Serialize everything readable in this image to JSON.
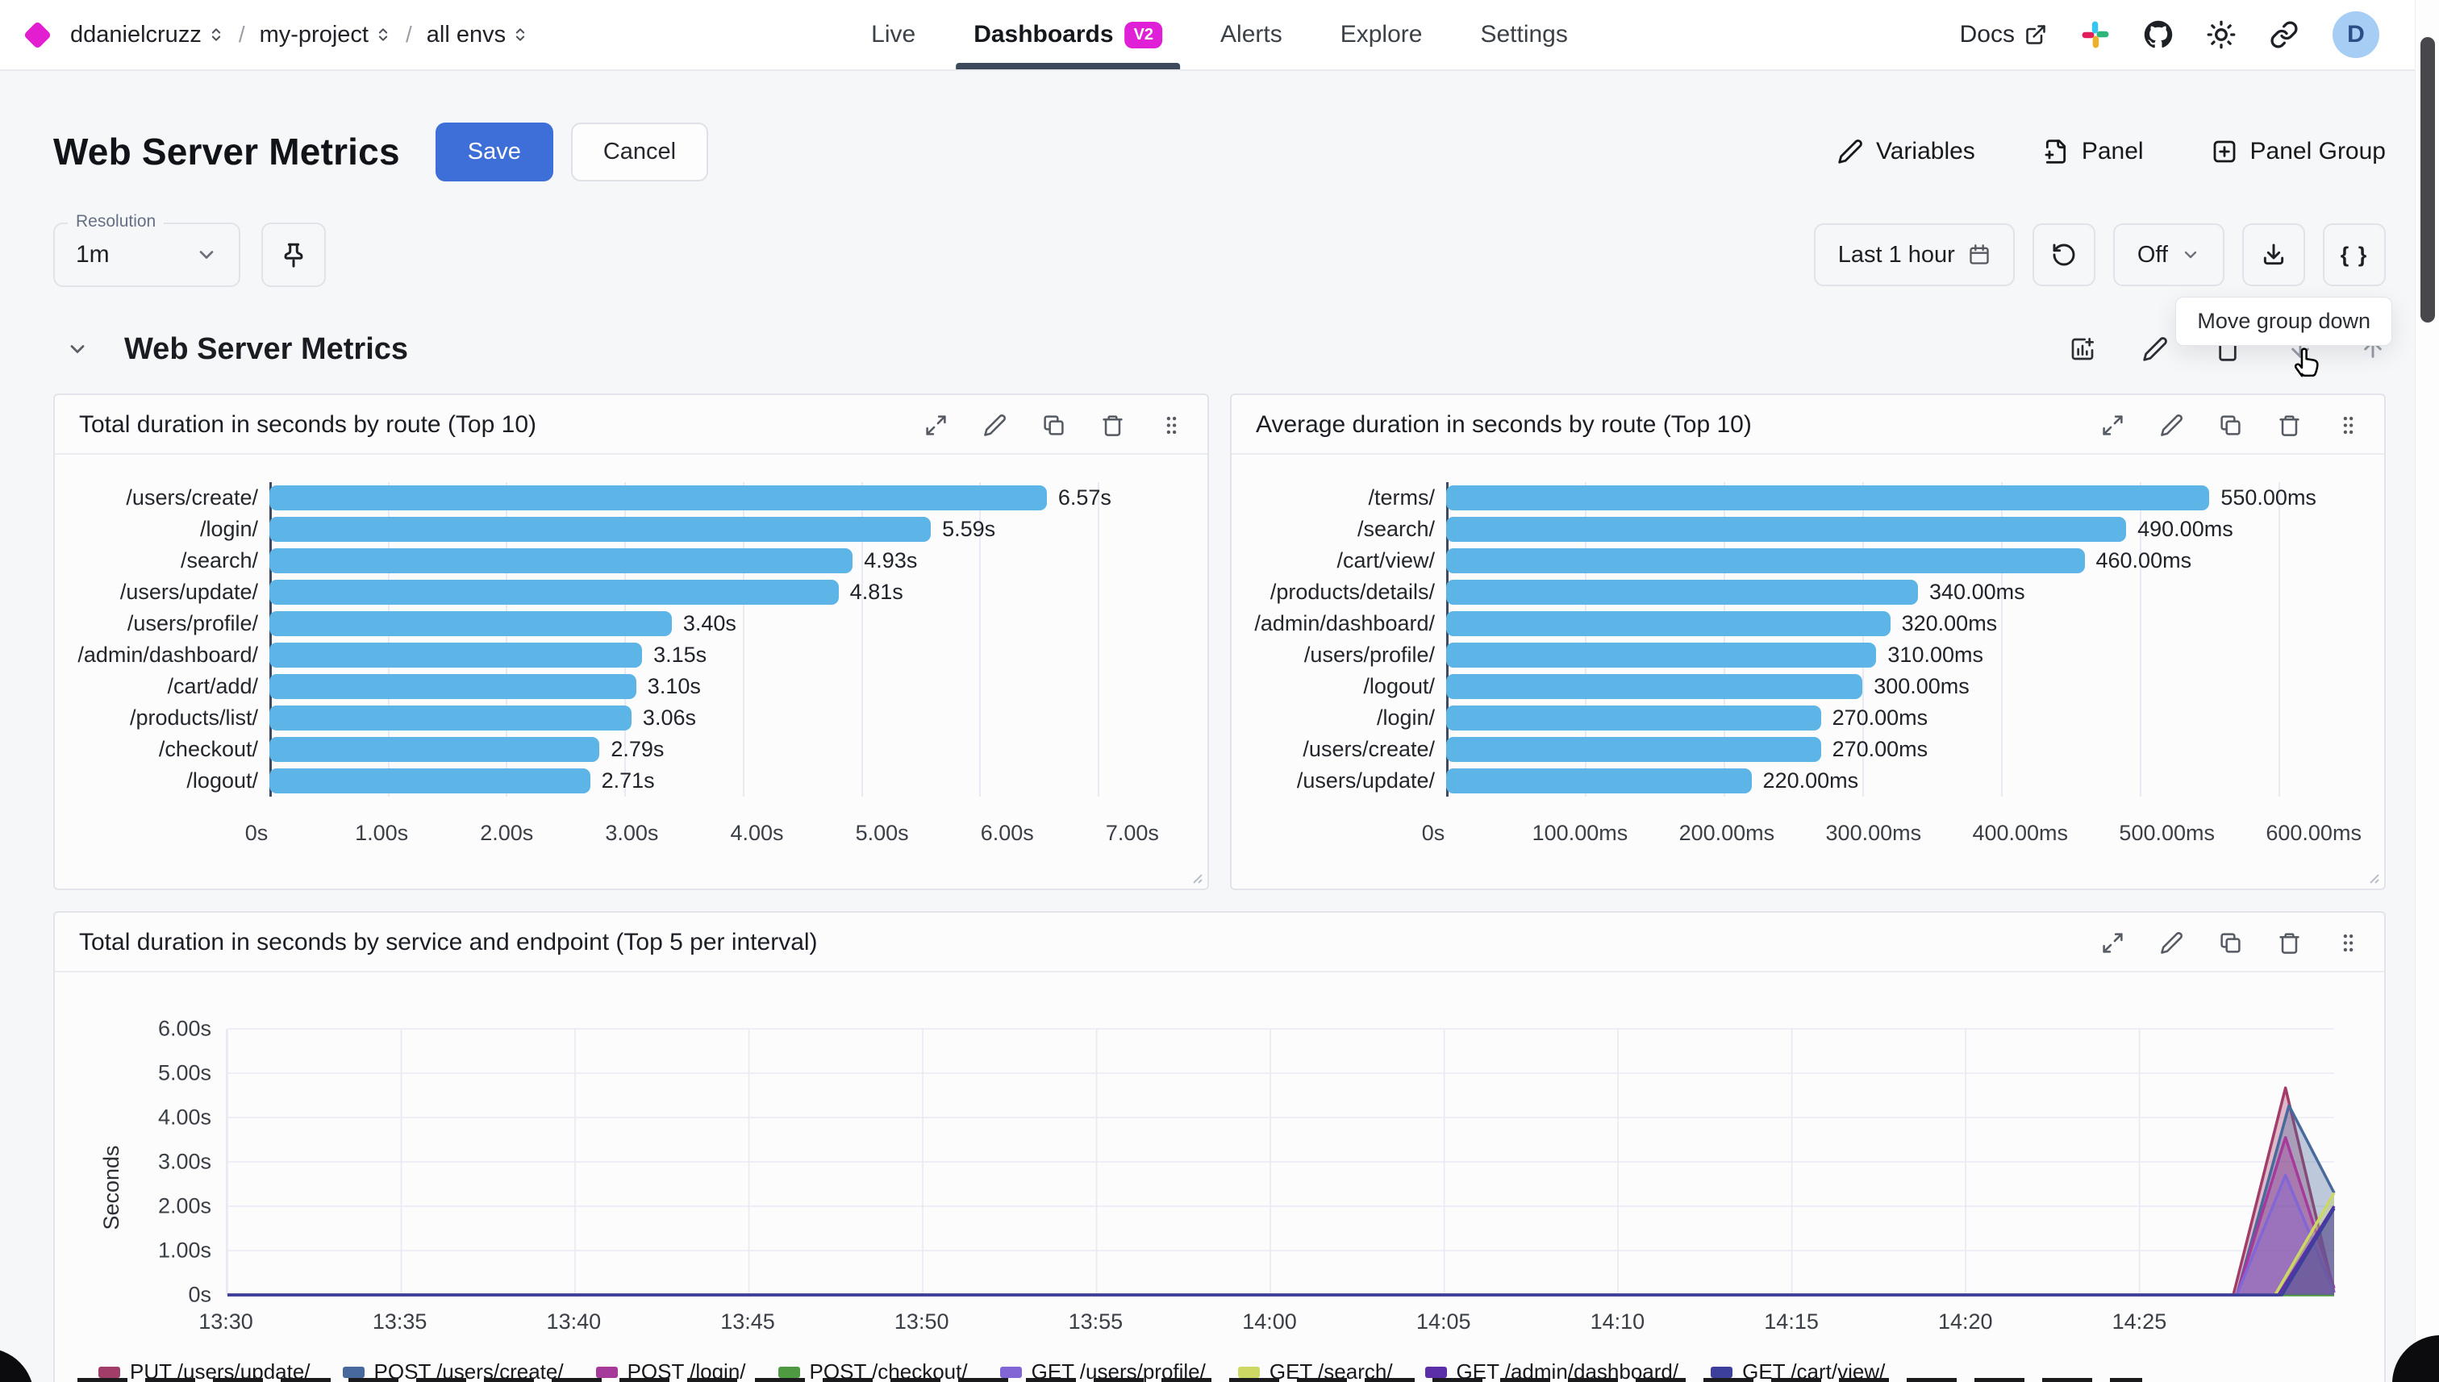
{
  "nav": {
    "breadcrumb": [
      {
        "label": "ddanielcruzz"
      },
      {
        "label": "my-project"
      },
      {
        "label": "all envs"
      }
    ],
    "tabs": [
      {
        "label": "Live",
        "active": false
      },
      {
        "label": "Dashboards",
        "active": true,
        "badge": "v2"
      },
      {
        "label": "Alerts",
        "active": false
      },
      {
        "label": "Explore",
        "active": false
      },
      {
        "label": "Settings",
        "active": false
      }
    ],
    "docs_label": "Docs",
    "avatar_initial": "D"
  },
  "header": {
    "title": "Web Server Metrics",
    "save_label": "Save",
    "cancel_label": "Cancel",
    "actions": [
      {
        "label": "Variables"
      },
      {
        "label": "Panel"
      },
      {
        "label": "Panel Group"
      }
    ]
  },
  "toolbar": {
    "resolution_label": "Resolution",
    "resolution_value": "1m",
    "time_range": "Last 1 hour",
    "refresh_interval": "Off",
    "code_button": "{ }",
    "tooltip": "Move group down"
  },
  "group": {
    "title": "Web Server Metrics"
  },
  "colors": {
    "accent_blue": "#3e6ed8",
    "brand_magenta": "#e020d6",
    "bar_blue": "#5cb5e6"
  },
  "chart_data": [
    {
      "type": "bar",
      "orientation": "horizontal",
      "title": "Total duration in seconds by route (Top 10)",
      "categories": [
        "/users/create/",
        "/login/",
        "/search/",
        "/users/update/",
        "/users/profile/",
        "/admin/dashboard/",
        "/cart/add/",
        "/products/list/",
        "/checkout/",
        "/logout/"
      ],
      "values": [
        6.57,
        5.59,
        4.93,
        4.81,
        3.4,
        3.15,
        3.1,
        3.06,
        2.79,
        2.71
      ],
      "value_labels": [
        "6.57s",
        "5.59s",
        "4.93s",
        "4.81s",
        "3.40s",
        "3.15s",
        "3.10s",
        "3.06s",
        "2.79s",
        "2.71s"
      ],
      "x_ticks": [
        {
          "label": "0s",
          "value": 0
        },
        {
          "label": "1.00s",
          "value": 1
        },
        {
          "label": "2.00s",
          "value": 2
        },
        {
          "label": "3.00s",
          "value": 3
        },
        {
          "label": "4.00s",
          "value": 4
        },
        {
          "label": "5.00s",
          "value": 5
        },
        {
          "label": "6.00s",
          "value": 6
        },
        {
          "label": "7.00s",
          "value": 7
        }
      ],
      "xmax": 7.6,
      "bar_color": "#5cb5e6"
    },
    {
      "type": "bar",
      "orientation": "horizontal",
      "title": "Average duration in seconds by route (Top 10)",
      "categories": [
        "/terms/",
        "/search/",
        "/cart/view/",
        "/products/details/",
        "/admin/dashboard/",
        "/users/profile/",
        "/logout/",
        "/login/",
        "/users/create/",
        "/users/update/"
      ],
      "values": [
        550,
        490,
        460,
        340,
        320,
        310,
        300,
        270,
        270,
        220
      ],
      "value_labels": [
        "550.00ms",
        "490.00ms",
        "460.00ms",
        "340.00ms",
        "320.00ms",
        "310.00ms",
        "300.00ms",
        "270.00ms",
        "270.00ms",
        "220.00ms"
      ],
      "x_ticks": [
        {
          "label": "0s",
          "value": 0
        },
        {
          "label": "100.00ms",
          "value": 100
        },
        {
          "label": "200.00ms",
          "value": 200
        },
        {
          "label": "300.00ms",
          "value": 300
        },
        {
          "label": "400.00ms",
          "value": 400
        },
        {
          "label": "500.00ms",
          "value": 500
        },
        {
          "label": "600.00ms",
          "value": 600
        }
      ],
      "xmax": 648,
      "bar_color": "#5cb5e6"
    },
    {
      "type": "area",
      "title": "Total duration in seconds by service and endpoint (Top 5 per interval)",
      "ylabel": "Seconds",
      "y_ticks": [
        {
          "label": "6.00s",
          "value": 6
        },
        {
          "label": "5.00s",
          "value": 5
        },
        {
          "label": "4.00s",
          "value": 4
        },
        {
          "label": "3.00s",
          "value": 3
        },
        {
          "label": "2.00s",
          "value": 2
        },
        {
          "label": "1.00s",
          "value": 1
        },
        {
          "label": "0s",
          "value": 0
        }
      ],
      "ymax": 6,
      "x_ticks": [
        {
          "label": "13:30",
          "minute": 0
        },
        {
          "label": "13:35",
          "minute": 5
        },
        {
          "label": "13:40",
          "minute": 10
        },
        {
          "label": "13:45",
          "minute": 15
        },
        {
          "label": "13:50",
          "minute": 20
        },
        {
          "label": "13:55",
          "minute": 25
        },
        {
          "label": "14:00",
          "minute": 30
        },
        {
          "label": "14:05",
          "minute": 35
        },
        {
          "label": "14:10",
          "minute": 40
        },
        {
          "label": "14:15",
          "minute": 45
        },
        {
          "label": "14:20",
          "minute": 50
        },
        {
          "label": "14:25",
          "minute": 55
        }
      ],
      "xmax_minutes": 60.6,
      "series": [
        {
          "name": "PUT /users/update/",
          "color": "#a23c68",
          "points": [
            [
              0,
              0
            ],
            [
              57.7,
              0
            ],
            [
              59.2,
              4.67
            ],
            [
              60.6,
              0.05
            ]
          ]
        },
        {
          "name": "POST /users/create/",
          "color": "#47699b",
          "points": [
            [
              0,
              0
            ],
            [
              57.8,
              0
            ],
            [
              59.3,
              4.27
            ],
            [
              60.6,
              2.3
            ]
          ]
        },
        {
          "name": "POST /login/",
          "color": "#a53a9b",
          "points": [
            [
              0,
              0
            ],
            [
              57.8,
              0
            ],
            [
              59.2,
              3.55
            ],
            [
              60.6,
              0.15
            ]
          ]
        },
        {
          "name": "POST /checkout/",
          "color": "#4d9a40",
          "points": [
            [
              0,
              0
            ],
            [
              60.6,
              0
            ]
          ]
        },
        {
          "name": "GET /users/profile/",
          "color": "#8266d6",
          "points": [
            [
              0,
              0
            ],
            [
              57.8,
              0
            ],
            [
              59.2,
              2.7
            ],
            [
              60.6,
              0.05
            ]
          ]
        },
        {
          "name": "GET /search/",
          "color": "#ccd863",
          "points": [
            [
              0,
              0
            ],
            [
              58.9,
              0
            ],
            [
              60.6,
              2.3
            ]
          ]
        },
        {
          "name": "GET /admin/dashboard/",
          "color": "#5a2fa8",
          "points": [
            [
              0,
              0
            ],
            [
              59.0,
              0
            ],
            [
              60.6,
              2.0
            ]
          ]
        },
        {
          "name": "GET /cart/view/",
          "color": "#3c3f9c",
          "points": [
            [
              0,
              0
            ],
            [
              59.1,
              0
            ],
            [
              60.6,
              1.95
            ]
          ]
        }
      ],
      "legend_position": "bottom"
    }
  ]
}
